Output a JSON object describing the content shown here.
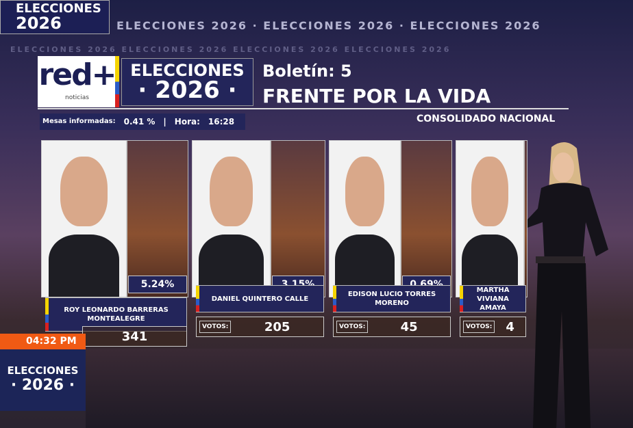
{
  "ticker": {
    "text": "ELECCIONES 2026 · ELECCIONES 2026 · ELECCIONES 2026",
    "text_small": "ELECCIONES 2026   ELECCIONES 2026   ELECCIONES 2026   ELECCIONES 2026"
  },
  "badge": {
    "line1": "ELECCIONES",
    "line2": "2026"
  },
  "header": {
    "logo": "red+",
    "logo_sub": "noticias",
    "elecciones": "ELECCIONES",
    "year": "· 2026 ·",
    "boletin": "Boletín: 5",
    "party": "FRENTE POR LA VIDA",
    "consolidado": "CONSOLIDADO NACIONAL"
  },
  "stats": {
    "mesas_label": "Mesas informadas:",
    "mesas_value": "0.41 %",
    "hora_label": "Hora:",
    "hora_value": "16:28"
  },
  "votes_label": "VOTOS:",
  "candidates": [
    {
      "name": "ROY LEONARDO BARRERAS MONTEALEGRE",
      "percent": "5.24%",
      "votes": "341"
    },
    {
      "name": "DANIEL QUINTERO CALLE",
      "percent": "3.15%",
      "votes": "205"
    },
    {
      "name": "EDISON LUCIO TORRES MORENO",
      "percent": "0.69%",
      "votes": "45"
    },
    {
      "name": "MARTHA VIVIANA AMAYA",
      "percent": "",
      "votes": "4"
    }
  ],
  "lower_third": {
    "time": "04:32 PM",
    "line1": "ELECCIONES",
    "line2": "· 2026 ·"
  },
  "colors": {
    "navy": "#23255a",
    "orange": "#f05a14"
  }
}
